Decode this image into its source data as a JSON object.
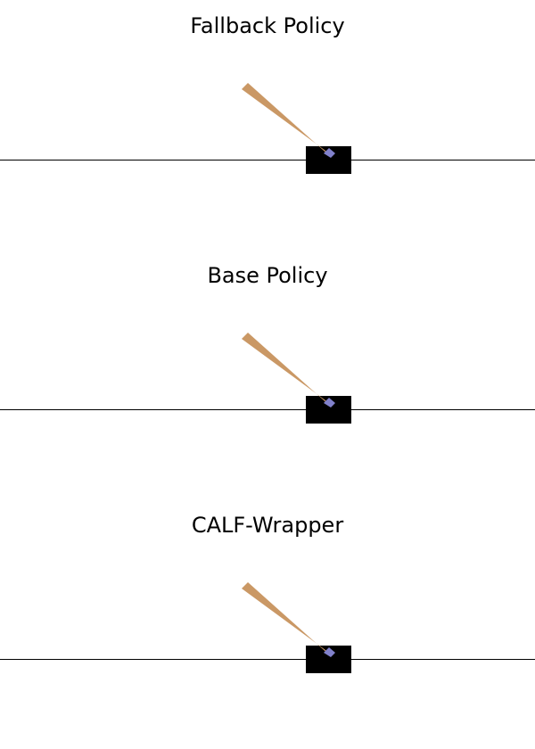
{
  "colors": {
    "background": "#ffffff",
    "track": "#000000",
    "cart": "#000000",
    "pole": "#ca9865",
    "axle": "#8181cb"
  },
  "panels": [
    {
      "title": "Fallback Policy"
    },
    {
      "title": "Base Policy"
    },
    {
      "title": "CALF-Wrapper"
    }
  ]
}
